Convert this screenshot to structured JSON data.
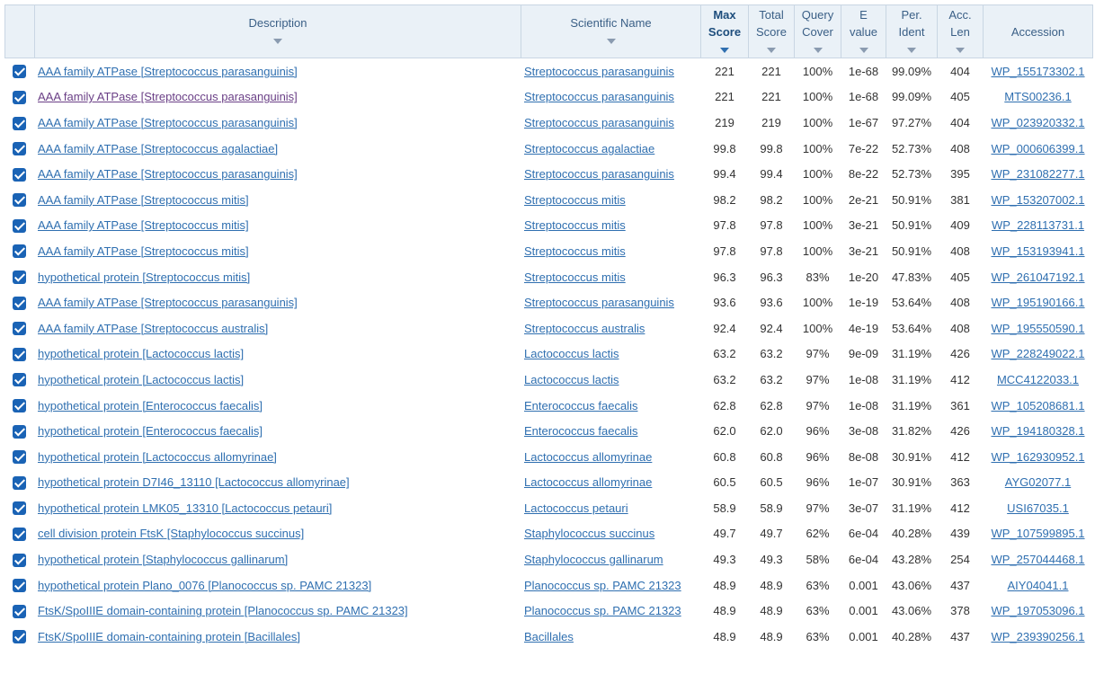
{
  "headers": {
    "description": "Description",
    "scientific_name": "Scientific Name",
    "max_score": [
      "Max",
      "Score"
    ],
    "total_score": [
      "Total",
      "Score"
    ],
    "query_cover": [
      "Query",
      "Cover"
    ],
    "e_value": [
      "E",
      "value"
    ],
    "per_ident": [
      "Per.",
      "Ident"
    ],
    "acc_len": [
      "Acc.",
      "Len"
    ],
    "accession": "Accession"
  },
  "rows": [
    {
      "desc": "AAA family ATPase [Streptococcus parasanguinis]",
      "sci": "Streptococcus parasanguinis",
      "max": "221",
      "total": "221",
      "cover": "100%",
      "evalue": "1e-68",
      "ident": "99.09%",
      "len": "404",
      "acc": "WP_155173302.1"
    },
    {
      "desc": "AAA family ATPase [Streptococcus parasanguinis]",
      "sci": "Streptococcus parasanguinis",
      "max": "221",
      "total": "221",
      "cover": "100%",
      "evalue": "1e-68",
      "ident": "99.09%",
      "len": "405",
      "acc": "MTS00236.1"
    },
    {
      "desc": "AAA family ATPase [Streptococcus parasanguinis]",
      "sci": "Streptococcus parasanguinis",
      "max": "219",
      "total": "219",
      "cover": "100%",
      "evalue": "1e-67",
      "ident": "97.27%",
      "len": "404",
      "acc": "WP_023920332.1"
    },
    {
      "desc": "AAA family ATPase [Streptococcus agalactiae]",
      "sci": "Streptococcus agalactiae",
      "max": "99.8",
      "total": "99.8",
      "cover": "100%",
      "evalue": "7e-22",
      "ident": "52.73%",
      "len": "408",
      "acc": "WP_000606399.1"
    },
    {
      "desc": "AAA family ATPase [Streptococcus parasanguinis]",
      "sci": "Streptococcus parasanguinis",
      "max": "99.4",
      "total": "99.4",
      "cover": "100%",
      "evalue": "8e-22",
      "ident": "52.73%",
      "len": "395",
      "acc": "WP_231082277.1"
    },
    {
      "desc": "AAA family ATPase [Streptococcus mitis]",
      "sci": "Streptococcus mitis",
      "max": "98.2",
      "total": "98.2",
      "cover": "100%",
      "evalue": "2e-21",
      "ident": "50.91%",
      "len": "381",
      "acc": "WP_153207002.1"
    },
    {
      "desc": "AAA family ATPase [Streptococcus mitis]",
      "sci": "Streptococcus mitis",
      "max": "97.8",
      "total": "97.8",
      "cover": "100%",
      "evalue": "3e-21",
      "ident": "50.91%",
      "len": "409",
      "acc": "WP_228113731.1"
    },
    {
      "desc": "AAA family ATPase [Streptococcus mitis]",
      "sci": "Streptococcus mitis",
      "max": "97.8",
      "total": "97.8",
      "cover": "100%",
      "evalue": "3e-21",
      "ident": "50.91%",
      "len": "408",
      "acc": "WP_153193941.1"
    },
    {
      "desc": "hypothetical protein [Streptococcus mitis]",
      "sci": "Streptococcus mitis",
      "max": "96.3",
      "total": "96.3",
      "cover": "83%",
      "evalue": "1e-20",
      "ident": "47.83%",
      "len": "405",
      "acc": "WP_261047192.1"
    },
    {
      "desc": "AAA family ATPase [Streptococcus parasanguinis]",
      "sci": "Streptococcus parasanguinis",
      "max": "93.6",
      "total": "93.6",
      "cover": "100%",
      "evalue": "1e-19",
      "ident": "53.64%",
      "len": "408",
      "acc": "WP_195190166.1"
    },
    {
      "desc": "AAA family ATPase [Streptococcus australis]",
      "sci": "Streptococcus australis",
      "max": "92.4",
      "total": "92.4",
      "cover": "100%",
      "evalue": "4e-19",
      "ident": "53.64%",
      "len": "408",
      "acc": "WP_195550590.1"
    },
    {
      "desc": "hypothetical protein [Lactococcus lactis]",
      "sci": "Lactococcus lactis",
      "max": "63.2",
      "total": "63.2",
      "cover": "97%",
      "evalue": "9e-09",
      "ident": "31.19%",
      "len": "426",
      "acc": "WP_228249022.1"
    },
    {
      "desc": "hypothetical protein [Lactococcus lactis]",
      "sci": "Lactococcus lactis",
      "max": "63.2",
      "total": "63.2",
      "cover": "97%",
      "evalue": "1e-08",
      "ident": "31.19%",
      "len": "412",
      "acc": "MCC4122033.1"
    },
    {
      "desc": "hypothetical protein [Enterococcus faecalis]",
      "sci": "Enterococcus faecalis",
      "max": "62.8",
      "total": "62.8",
      "cover": "97%",
      "evalue": "1e-08",
      "ident": "31.19%",
      "len": "361",
      "acc": "WP_105208681.1"
    },
    {
      "desc": "hypothetical protein [Enterococcus faecalis]",
      "sci": "Enterococcus faecalis",
      "max": "62.0",
      "total": "62.0",
      "cover": "96%",
      "evalue": "3e-08",
      "ident": "31.82%",
      "len": "426",
      "acc": "WP_194180328.1"
    },
    {
      "desc": "hypothetical protein [Lactococcus allomyrinae]",
      "sci": "Lactococcus allomyrinae",
      "max": "60.8",
      "total": "60.8",
      "cover": "96%",
      "evalue": "8e-08",
      "ident": "30.91%",
      "len": "412",
      "acc": "WP_162930952.1"
    },
    {
      "desc": "hypothetical protein D7I46_13110 [Lactococcus allomyrinae]",
      "sci": "Lactococcus allomyrinae",
      "max": "60.5",
      "total": "60.5",
      "cover": "96%",
      "evalue": "1e-07",
      "ident": "30.91%",
      "len": "363",
      "acc": "AYG02077.1"
    },
    {
      "desc": "hypothetical protein LMK05_13310 [Lactococcus petauri]",
      "sci": "Lactococcus petauri",
      "max": "58.9",
      "total": "58.9",
      "cover": "97%",
      "evalue": "3e-07",
      "ident": "31.19%",
      "len": "412",
      "acc": "USI67035.1"
    },
    {
      "desc": "cell division protein FtsK [Staphylococcus succinus]",
      "sci": "Staphylococcus succinus",
      "max": "49.7",
      "total": "49.7",
      "cover": "62%",
      "evalue": "6e-04",
      "ident": "40.28%",
      "len": "439",
      "acc": "WP_107599895.1"
    },
    {
      "desc": "hypothetical protein [Staphylococcus gallinarum]",
      "sci": "Staphylococcus gallinarum",
      "max": "49.3",
      "total": "49.3",
      "cover": "58%",
      "evalue": "6e-04",
      "ident": "43.28%",
      "len": "254",
      "acc": "WP_257044468.1"
    },
    {
      "desc": "hypothetical protein Plano_0076 [Planococcus sp. PAMC 21323]",
      "sci": "Planococcus sp. PAMC 21323",
      "max": "48.9",
      "total": "48.9",
      "cover": "63%",
      "evalue": "0.001",
      "ident": "43.06%",
      "len": "437",
      "acc": "AIY04041.1"
    },
    {
      "desc": "FtsK/SpoIIIE domain-containing protein [Planococcus sp. PAMC 21323]",
      "sci": "Planococcus sp. PAMC 21323",
      "max": "48.9",
      "total": "48.9",
      "cover": "63%",
      "evalue": "0.001",
      "ident": "43.06%",
      "len": "378",
      "acc": "WP_197053096.1"
    },
    {
      "desc": "FtsK/SpoIIIE domain-containing protein [Bacillales]",
      "sci": "Bacillales",
      "max": "48.9",
      "total": "48.9",
      "cover": "63%",
      "evalue": "0.001",
      "ident": "40.28%",
      "len": "437",
      "acc": "WP_239390256.1"
    }
  ]
}
